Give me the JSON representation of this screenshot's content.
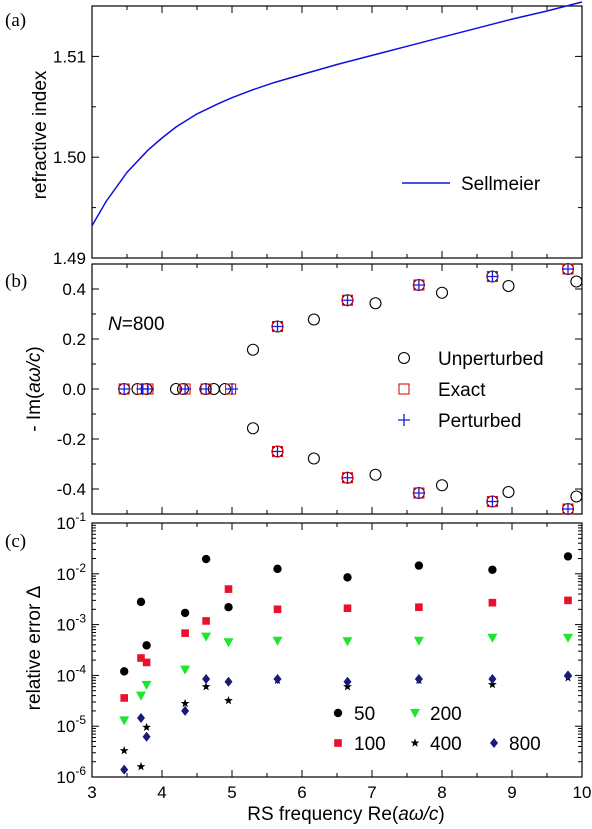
{
  "panels": {
    "a": {
      "tag": "(a)",
      "ylabel": "refractive index"
    },
    "b": {
      "tag": "(b)",
      "ylabel_prefix": "- Im(",
      "ylabel_var": "aω/c",
      "ylabel_suffix": ")",
      "annot_var": "N",
      "annot_rest": "=800"
    },
    "c": {
      "tag": "(c)",
      "ylabel": "relative error Δ"
    }
  },
  "xlabel": {
    "prefix": "RS frequency Re(",
    "var": "aω/c",
    "suffix": ")"
  },
  "colors": {
    "sellmeier": "#1010e0",
    "unperturbed": "#000000",
    "exact": "#e01010",
    "perturbed": "#1a1ae6",
    "n50": "#000000",
    "n100": "#e8102a",
    "n200": "#1ee62e",
    "n400": "#000000",
    "n800": "#1a1a78"
  },
  "chart_data": [
    {
      "type": "line",
      "xlim": [
        3,
        10
      ],
      "ylim": [
        1.49,
        1.515
      ],
      "x_ticks": [
        3,
        4,
        5,
        6,
        7,
        8,
        9,
        10
      ],
      "y_ticks": [
        1.49,
        1.5,
        1.51
      ],
      "y_tick_labels": [
        "1.49",
        "1.50",
        "1.51"
      ],
      "legend": "bottom-right",
      "series": [
        {
          "name": "Sellmeier",
          "x": [
            3.0,
            3.2,
            3.5,
            3.8,
            4.0,
            4.2,
            4.5,
            4.8,
            5.0,
            5.3,
            5.6,
            6.0,
            6.5,
            7.0,
            7.5,
            8.0,
            8.5,
            9.0,
            9.5,
            10.0
          ],
          "y": [
            1.4932,
            1.4956,
            1.4985,
            1.5007,
            1.5019,
            1.503,
            1.5043,
            1.5053,
            1.5059,
            1.5067,
            1.5074,
            1.5082,
            1.5092,
            1.5101,
            1.511,
            1.5119,
            1.5128,
            1.5137,
            1.5145,
            1.5154
          ]
        }
      ]
    },
    {
      "type": "scatter",
      "xlim": [
        3,
        10
      ],
      "ylim": [
        -0.5,
        0.5
      ],
      "x_ticks": [
        3,
        4,
        5,
        6,
        7,
        8,
        9,
        10
      ],
      "y_ticks": [
        -0.4,
        -0.2,
        0.0,
        0.2,
        0.4
      ],
      "y_tick_labels": [
        "-0.4",
        "-0.2",
        "0.0",
        "0.2",
        "0.4"
      ],
      "legend": "center-right",
      "series": [
        {
          "name": "Unperturbed",
          "x": [
            3.46,
            3.65,
            3.78,
            4.2,
            4.3,
            4.62,
            4.74,
            4.9,
            5.3,
            5.3,
            5.65,
            5.65,
            6.17,
            6.17,
            6.65,
            6.65,
            7.05,
            7.05,
            7.67,
            7.67,
            8.0,
            8.0,
            8.72,
            8.72,
            8.95,
            8.95,
            9.8,
            9.8,
            9.92,
            9.92
          ],
          "y": [
            0,
            0,
            0,
            0,
            0,
            0,
            0,
            0,
            0.157,
            -0.157,
            0.25,
            -0.25,
            0.278,
            -0.278,
            0.355,
            -0.355,
            0.343,
            -0.343,
            0.416,
            -0.416,
            0.385,
            -0.385,
            0.45,
            -0.45,
            0.412,
            -0.412,
            0.48,
            -0.48,
            0.43,
            -0.43
          ]
        },
        {
          "name": "Exact",
          "x": [
            3.46,
            3.72,
            3.8,
            4.33,
            4.63,
            4.98,
            5.65,
            5.65,
            6.65,
            6.65,
            7.67,
            7.67,
            8.72,
            8.72,
            9.8,
            9.8
          ],
          "y": [
            0,
            0,
            0,
            0,
            0,
            0,
            0.25,
            -0.25,
            0.355,
            -0.355,
            0.416,
            -0.416,
            0.45,
            -0.45,
            0.48,
            -0.48
          ]
        },
        {
          "name": "Perturbed",
          "x": [
            3.46,
            3.72,
            3.8,
            4.33,
            4.63,
            5.0,
            5.65,
            5.65,
            6.65,
            6.65,
            7.67,
            7.67,
            8.72,
            8.72,
            9.8,
            9.8
          ],
          "y": [
            0,
            0,
            0,
            0,
            0,
            0,
            0.25,
            -0.25,
            0.355,
            -0.355,
            0.416,
            -0.416,
            0.45,
            -0.45,
            0.48,
            -0.48
          ]
        }
      ]
    },
    {
      "type": "scatter",
      "y_scale": "log",
      "xlim": [
        3,
        10
      ],
      "ylim": [
        1e-06,
        0.1
      ],
      "x_ticks": [
        3,
        4,
        5,
        6,
        7,
        8,
        9,
        10
      ],
      "y_ticks": [
        1e-06,
        1e-05,
        0.0001,
        0.001,
        0.01,
        0.1
      ],
      "y_tick_labels": [
        {
          "base": "10",
          "exp": "-6"
        },
        {
          "base": "10",
          "exp": "-5"
        },
        {
          "base": "10",
          "exp": "-4"
        },
        {
          "base": "10",
          "exp": "-3"
        },
        {
          "base": "10",
          "exp": "-2"
        },
        {
          "base": "10",
          "exp": "-1"
        }
      ],
      "legend": "bottom-right",
      "series": [
        {
          "name": "50",
          "x": [
            3.46,
            3.7,
            3.78,
            4.33,
            4.63,
            4.95,
            5.65,
            6.65,
            7.67,
            8.72,
            9.8
          ],
          "y": [
            0.00012,
            0.0028,
            0.00039,
            0.0017,
            0.0195,
            0.0022,
            0.0125,
            0.0085,
            0.0145,
            0.012,
            0.022
          ]
        },
        {
          "name": "100",
          "x": [
            3.46,
            3.7,
            3.78,
            4.33,
            4.63,
            4.95,
            5.65,
            6.65,
            7.67,
            8.72,
            9.8
          ],
          "y": [
            3.6e-05,
            0.00022,
            0.00018,
            0.00068,
            0.00118,
            0.005,
            0.002,
            0.0021,
            0.0022,
            0.0027,
            0.003
          ]
        },
        {
          "name": "200",
          "x": [
            3.46,
            3.7,
            3.78,
            4.33,
            4.63,
            4.95,
            5.65,
            6.65,
            7.67,
            8.72,
            9.8
          ],
          "y": [
            1.3e-05,
            4e-05,
            6.5e-05,
            0.00013,
            0.00058,
            0.00045,
            0.00048,
            0.00047,
            0.00048,
            0.00055,
            0.00055
          ]
        },
        {
          "name": "400",
          "x": [
            3.46,
            3.7,
            3.78,
            4.33,
            4.63,
            4.95,
            5.65,
            6.65,
            7.67,
            8.72,
            9.8
          ],
          "y": [
            3.3e-06,
            1.6e-06,
            9.5e-06,
            2.8e-05,
            6e-05,
            3.2e-05,
            8e-05,
            6e-05,
            8e-05,
            6.6e-05,
            9e-05
          ]
        },
        {
          "name": "800",
          "x": [
            3.46,
            3.7,
            3.78,
            4.33,
            4.63,
            4.95,
            5.65,
            6.65,
            7.67,
            8.72,
            9.8
          ],
          "y": [
            1.4e-06,
            1.45e-05,
            6.2e-06,
            2e-05,
            8.5e-05,
            7.5e-05,
            8.5e-05,
            7.5e-05,
            8.5e-05,
            8.5e-05,
            0.0001
          ]
        }
      ]
    }
  ]
}
